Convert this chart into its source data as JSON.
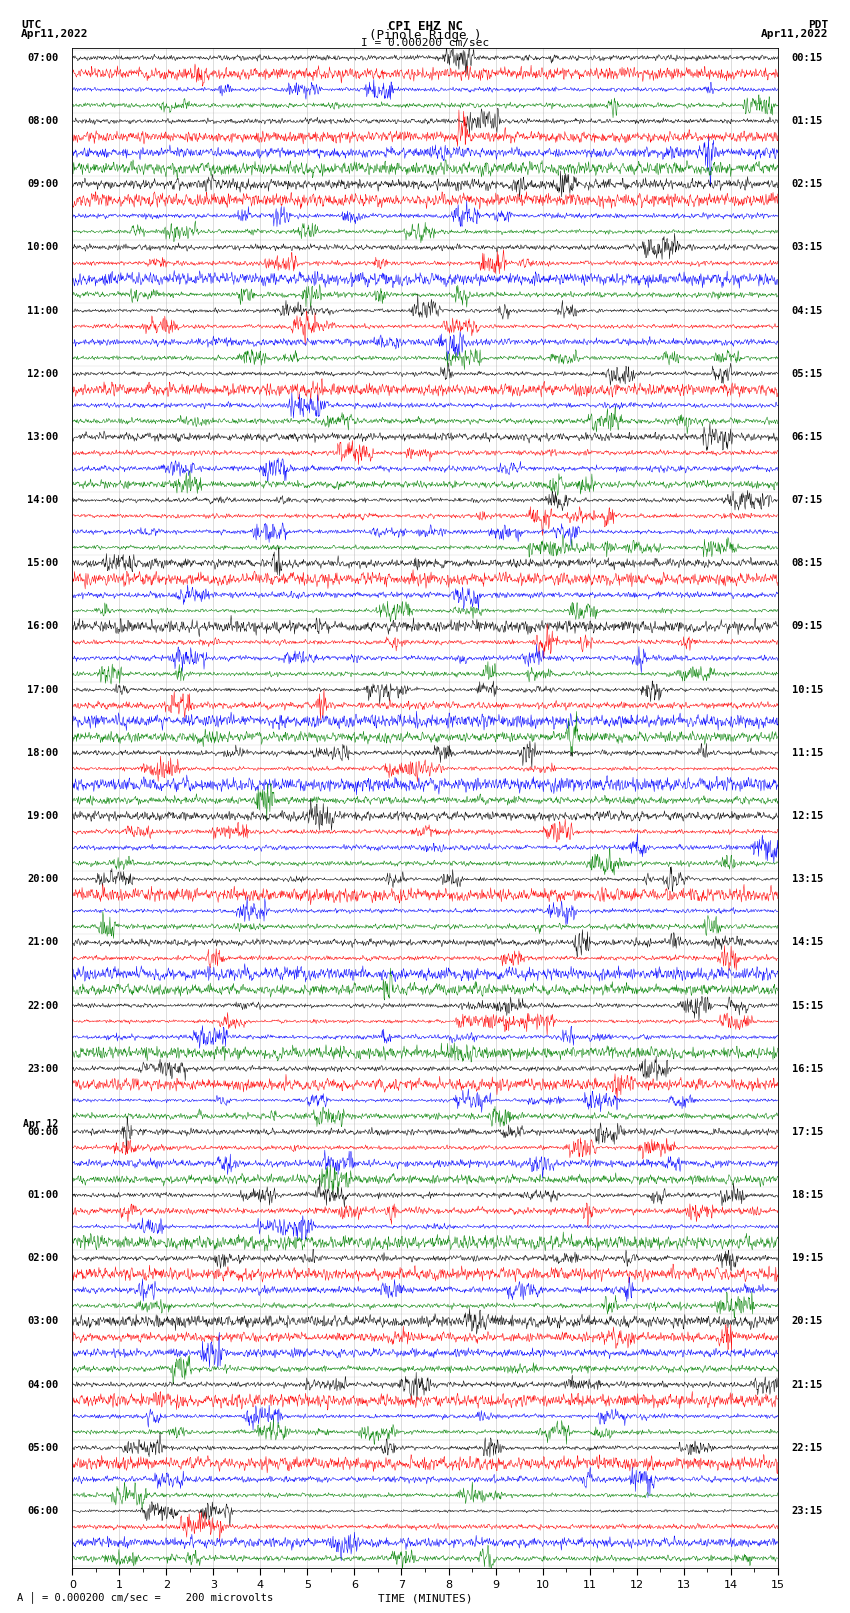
{
  "title_line1": "CPI EHZ NC",
  "title_line2": "(Pinole Ridge )",
  "scale_label": "I = 0.000200 cm/sec",
  "footer_label": "A │ = 0.000200 cm/sec =    200 microvolts",
  "xlabel": "TIME (MINUTES)",
  "utc_label": "UTC",
  "utc_date": "Apr11,2022",
  "pdt_label": "PDT",
  "pdt_date": "Apr11,2022",
  "left_times": [
    "07:00",
    "08:00",
    "09:00",
    "10:00",
    "11:00",
    "12:00",
    "13:00",
    "14:00",
    "15:00",
    "16:00",
    "17:00",
    "18:00",
    "19:00",
    "20:00",
    "21:00",
    "22:00",
    "23:00",
    "Apr 12\n00:00",
    "01:00",
    "02:00",
    "03:00",
    "04:00",
    "05:00",
    "06:00"
  ],
  "right_times": [
    "00:15",
    "01:15",
    "02:15",
    "03:15",
    "04:15",
    "05:15",
    "06:15",
    "07:15",
    "08:15",
    "09:15",
    "10:15",
    "11:15",
    "12:15",
    "13:15",
    "14:15",
    "15:15",
    "16:15",
    "17:15",
    "18:15",
    "19:15",
    "20:15",
    "21:15",
    "22:15",
    "23:15"
  ],
  "trace_colors": [
    "black",
    "red",
    "blue",
    "green"
  ],
  "n_groups": 24,
  "traces_per_group": 4,
  "n_samples": 1800,
  "xlim": [
    0,
    15
  ],
  "bg_color": "white",
  "seed": 42
}
